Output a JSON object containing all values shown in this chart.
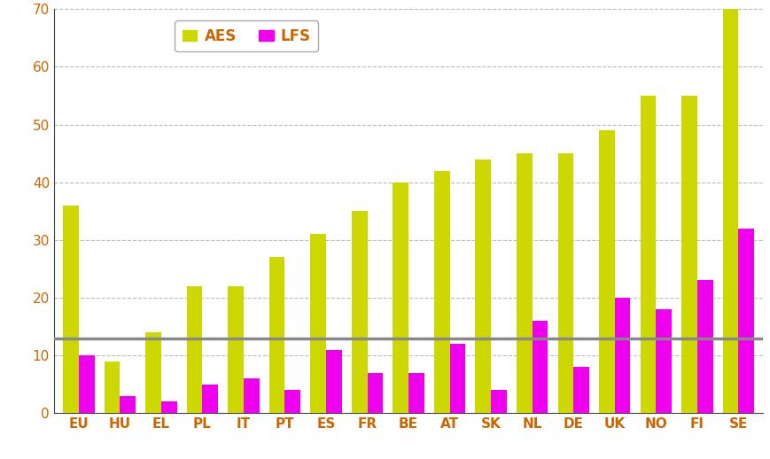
{
  "categories": [
    "EU",
    "HU",
    "EL",
    "PL",
    "IT",
    "PT",
    "ES",
    "FR",
    "BE",
    "AT",
    "SK",
    "NL",
    "DE",
    "UK",
    "NO",
    "FI",
    "SE"
  ],
  "AES": [
    36,
    9,
    14,
    22,
    22,
    27,
    31,
    35,
    40,
    42,
    44,
    45,
    45,
    49,
    55,
    55,
    70
  ],
  "LFS": [
    10,
    3,
    2,
    5,
    6,
    4,
    11,
    7,
    7,
    12,
    4,
    16,
    8,
    20,
    18,
    23,
    32
  ],
  "AES_color": "#ccd800",
  "LFS_color": "#ee00ee",
  "hline_y": 13,
  "hline_color": "#888888",
  "ylim": [
    0,
    70
  ],
  "yticks": [
    0,
    10,
    20,
    30,
    40,
    50,
    60,
    70
  ],
  "legend_AES": "AES",
  "legend_LFS": "LFS",
  "bar_width": 0.38,
  "background_color": "#ffffff",
  "grid_color": "#bbbbbb",
  "tick_label_color": "#cc6600",
  "legend_text_color": "#cc6600",
  "axis_label_fontsize": 11,
  "legend_fontsize": 12
}
